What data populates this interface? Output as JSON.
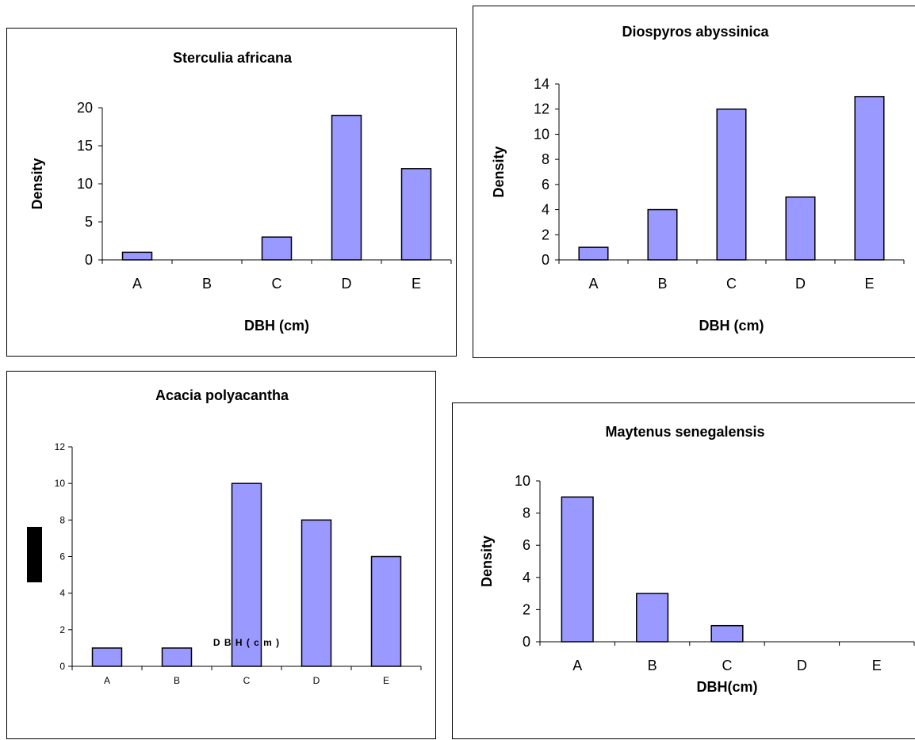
{
  "chart_data": [
    {
      "type": "bar",
      "title": "Sterculia africana",
      "xlabel": "DBH (cm)",
      "ylabel": "Density",
      "categories": [
        "A",
        "B",
        "C",
        "D",
        "E"
      ],
      "values": [
        1,
        0,
        3,
        19,
        12
      ],
      "ylim": [
        0,
        20
      ],
      "yticks": [
        0,
        5,
        10,
        15,
        20
      ],
      "bar_color": "#9999ff"
    },
    {
      "type": "bar",
      "title": "Diospyros abyssinica",
      "xlabel": "DBH (cm)",
      "ylabel": "Density",
      "categories": [
        "A",
        "B",
        "C",
        "D",
        "E"
      ],
      "values": [
        1,
        4,
        12,
        5,
        13
      ],
      "ylim": [
        0,
        14
      ],
      "yticks": [
        0,
        2,
        4,
        6,
        8,
        10,
        12,
        14
      ],
      "bar_color": "#9999ff"
    },
    {
      "type": "bar",
      "title": "Acacia polyacantha",
      "xlabel": "D B H  ( c m )",
      "ylabel": "",
      "categories": [
        "A",
        "B",
        "C",
        "D",
        "E"
      ],
      "values": [
        1,
        1,
        10,
        8,
        6
      ],
      "ylim": [
        0,
        12
      ],
      "yticks": [
        0,
        2,
        4,
        6,
        8,
        10,
        12
      ],
      "bar_color": "#9999ff"
    },
    {
      "type": "bar",
      "title": "Maytenus senegalensis",
      "xlabel": "DBH(cm)",
      "ylabel": "Density",
      "categories": [
        "A",
        "B",
        "C",
        "D",
        "E"
      ],
      "values": [
        9,
        3,
        1,
        0,
        0
      ],
      "ylim": [
        0,
        10
      ],
      "yticks": [
        0,
        2,
        4,
        6,
        8,
        10
      ],
      "bar_color": "#9999ff"
    }
  ]
}
